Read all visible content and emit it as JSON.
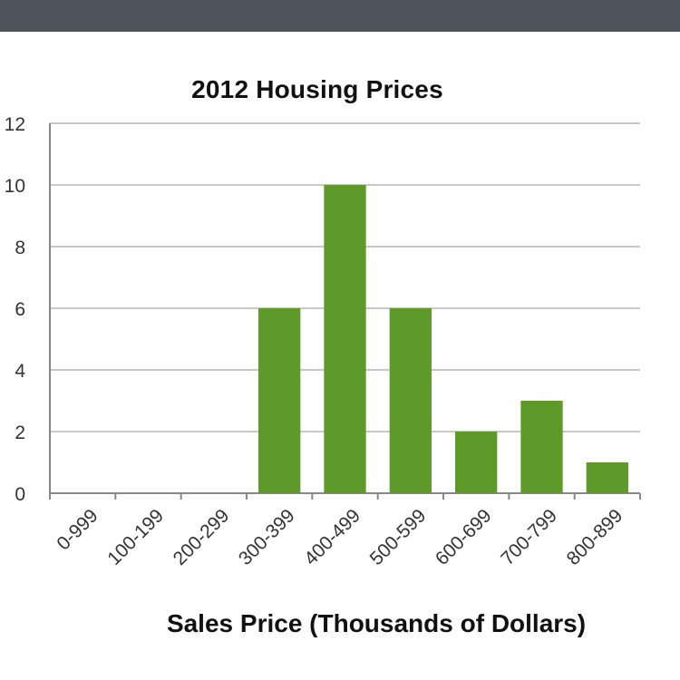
{
  "chart_data": {
    "type": "bar",
    "title": "2012 Housing Prices",
    "xlabel": "Sales Price (Thousands of Dollars)",
    "ylabel": "",
    "categories": [
      "0-999",
      "100-199",
      "200-299",
      "300-399",
      "400-499",
      "500-599",
      "600-699",
      "700-799",
      "800-899"
    ],
    "values": [
      0,
      0,
      0,
      6,
      10,
      6,
      2,
      3,
      1
    ],
    "ylim": [
      0,
      12
    ],
    "yticks": [
      0,
      2,
      4,
      6,
      8,
      10,
      12
    ],
    "grid": true,
    "bar_color": "#5e9a2a",
    "grid_color": "#c8c8c8",
    "axis_color": "#888888"
  },
  "header": {
    "bar_color": "#4e525a"
  }
}
